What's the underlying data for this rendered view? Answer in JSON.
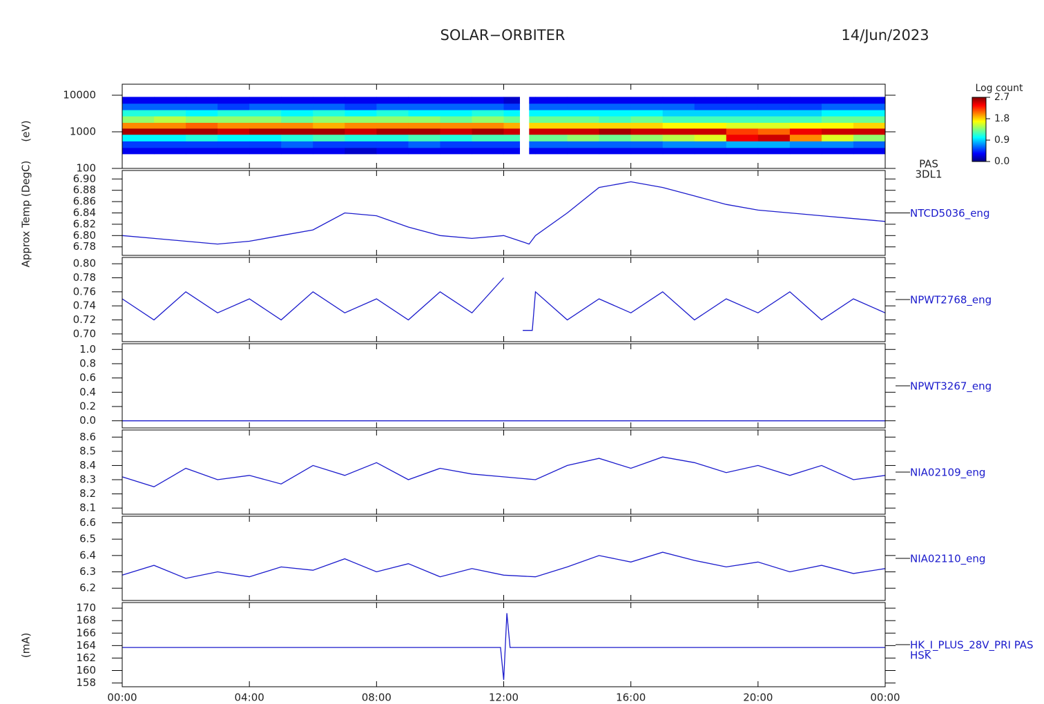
{
  "title": "SOLAR−ORBITER",
  "date": "14/Jun/2023",
  "y_labels": [
    "(eV)",
    "Approx Temp (DegC)",
    "(mA)"
  ],
  "time_axis": {
    "xlim": [
      0,
      24
    ],
    "xticks": [
      {
        "value": 0,
        "label": "00:00"
      },
      {
        "value": 4,
        "label": "04:00"
      },
      {
        "value": 8,
        "label": "08:00"
      },
      {
        "value": 12,
        "label": "12:00"
      },
      {
        "value": 16,
        "label": "16:00"
      },
      {
        "value": 20,
        "label": "20:00"
      },
      {
        "value": 24,
        "label": "00:00"
      }
    ]
  },
  "chart_data": [
    {
      "type": "spectrogram",
      "labels": [
        "PAS",
        "3DL1"
      ],
      "log_y": true,
      "ylim": [
        100,
        20000
      ],
      "yticks": [
        100,
        1000,
        10000
      ],
      "time_bins": [
        0,
        1,
        2,
        3,
        4,
        5,
        6,
        7,
        8,
        9,
        10,
        11,
        12,
        12.5,
        12.8,
        13,
        14,
        15,
        16,
        17,
        18,
        19,
        20,
        21,
        22,
        23,
        24
      ],
      "energy_bins": [
        250,
        370,
        560,
        850,
        1250,
        1800,
        2700,
        4000,
        6000,
        9000
      ],
      "values": [
        [
          0.3,
          0.5,
          1.0,
          2.6,
          2.0,
          1.4,
          1.1,
          0.6,
          0.3
        ],
        [
          0.3,
          0.5,
          1.0,
          2.6,
          2.0,
          1.5,
          1.1,
          0.6,
          0.3
        ],
        [
          0.3,
          0.5,
          1.1,
          2.6,
          2.1,
          1.4,
          1.0,
          0.6,
          0.3
        ],
        [
          0.3,
          0.5,
          1.0,
          2.5,
          2.0,
          1.4,
          1.1,
          0.5,
          0.3
        ],
        [
          0.3,
          0.5,
          1.0,
          2.6,
          2.0,
          1.4,
          1.1,
          0.6,
          0.3
        ],
        [
          0.3,
          0.6,
          1.1,
          2.6,
          2.0,
          1.3,
          1.0,
          0.6,
          0.3
        ],
        [
          0.3,
          0.5,
          1.2,
          2.6,
          1.9,
          1.4,
          1.1,
          0.6,
          0.3
        ],
        [
          0.2,
          0.5,
          1.1,
          2.5,
          2.0,
          1.4,
          1.0,
          0.5,
          0.3
        ],
        [
          0.3,
          0.5,
          1.1,
          2.6,
          2.0,
          1.4,
          1.1,
          0.6,
          0.3
        ],
        [
          0.3,
          0.6,
          1.2,
          2.6,
          2.0,
          1.4,
          1.0,
          0.6,
          0.3
        ],
        [
          0.3,
          0.5,
          1.1,
          2.5,
          2.0,
          1.3,
          1.0,
          0.6,
          0.3
        ],
        [
          0.3,
          0.5,
          1.2,
          2.6,
          2.0,
          1.4,
          1.1,
          0.6,
          0.3
        ],
        [
          0.3,
          0.5,
          1.2,
          2.5,
          1.9,
          1.3,
          1.0,
          0.5,
          0.2
        ],
        [
          null,
          null,
          null,
          null,
          null,
          null,
          null,
          null,
          null
        ],
        [
          0.3,
          0.6,
          1.3,
          2.5,
          1.8,
          1.3,
          1.0,
          0.6,
          0.3
        ],
        [
          0.3,
          0.6,
          1.3,
          2.5,
          1.8,
          1.3,
          1.0,
          0.6,
          0.3
        ],
        [
          0.3,
          0.6,
          1.4,
          2.5,
          1.8,
          1.3,
          1.0,
          0.6,
          0.3
        ],
        [
          0.3,
          0.6,
          1.3,
          2.6,
          1.8,
          1.2,
          1.0,
          0.6,
          0.3
        ],
        [
          0.3,
          0.6,
          1.4,
          2.5,
          1.8,
          1.3,
          1.0,
          0.6,
          0.3
        ],
        [
          0.3,
          0.7,
          1.5,
          2.5,
          1.7,
          1.2,
          0.9,
          0.6,
          0.3
        ],
        [
          0.3,
          0.7,
          1.6,
          2.5,
          1.7,
          1.2,
          0.9,
          0.5,
          0.3
        ],
        [
          0.3,
          0.8,
          2.4,
          2.2,
          1.6,
          1.2,
          0.9,
          0.5,
          0.3
        ],
        [
          0.3,
          0.8,
          2.5,
          2.1,
          1.6,
          1.2,
          0.9,
          0.5,
          0.3
        ],
        [
          0.3,
          0.7,
          2.0,
          2.4,
          1.7,
          1.2,
          0.9,
          0.5,
          0.3
        ],
        [
          0.3,
          0.7,
          1.6,
          2.5,
          1.7,
          1.3,
          1.0,
          0.6,
          0.3
        ],
        [
          0.3,
          0.6,
          1.4,
          2.5,
          1.8,
          1.3,
          1.0,
          0.6,
          0.3
        ]
      ],
      "colorbar": {
        "title": "Log count",
        "zlim": [
          0,
          2.7
        ],
        "ticks": [
          {
            "value": 0,
            "label": "0.0"
          },
          0.9,
          1.8,
          2.7
        ]
      }
    },
    {
      "type": "line",
      "labels": [
        "NTCD5036_eng"
      ],
      "color": "#1a1acc",
      "ylim": [
        6.765,
        6.915
      ],
      "yticks": [
        6.78,
        {
          "value": 6.8,
          "label": "6.80"
        },
        6.82,
        6.84,
        6.86,
        6.88,
        {
          "value": 6.9,
          "label": "6.90"
        }
      ],
      "x": [
        0,
        1,
        2,
        3,
        4,
        5,
        6,
        7,
        8,
        9,
        10,
        11,
        12,
        12.8,
        13,
        14,
        15,
        16,
        17,
        18,
        19,
        20,
        21,
        22,
        23,
        24
      ],
      "values": [
        6.8,
        6.795,
        6.79,
        6.785,
        6.79,
        6.8,
        6.81,
        6.84,
        6.835,
        6.815,
        6.8,
        6.795,
        6.8,
        6.785,
        6.8,
        6.84,
        6.885,
        6.895,
        6.885,
        6.87,
        6.855,
        6.845,
        6.84,
        6.835,
        6.83,
        6.825
      ]
    },
    {
      "type": "line",
      "labels": [
        "NPWT2768_eng"
      ],
      "color": "#1a1acc",
      "ylim": [
        0.689,
        0.809
      ],
      "yticks": [
        {
          "value": 0.7,
          "label": "0.70"
        },
        0.72,
        0.74,
        0.76,
        0.78,
        {
          "value": 0.8,
          "label": "0.80"
        }
      ],
      "x": [
        0,
        1,
        2,
        3,
        4,
        5,
        6,
        7,
        8,
        9,
        10,
        11,
        12,
        12.5,
        12.6,
        12.9,
        13,
        14,
        15,
        16,
        17,
        18,
        19,
        20,
        21,
        22,
        23,
        24
      ],
      "values": [
        0.75,
        0.72,
        0.76,
        0.73,
        0.75,
        0.72,
        0.76,
        0.73,
        0.75,
        0.72,
        0.76,
        0.73,
        0.78,
        null,
        0.705,
        0.705,
        0.76,
        0.72,
        0.75,
        0.73,
        0.76,
        0.72,
        0.75,
        0.73,
        0.76,
        0.72,
        0.75,
        0.73
      ]
    },
    {
      "type": "line",
      "labels": [
        "NPWT3267_eng"
      ],
      "color": "#1a1acc",
      "ylim": [
        -0.1,
        1.08
      ],
      "yticks": [
        {
          "value": 0,
          "label": "0.0"
        },
        0.2,
        0.4,
        0.6,
        0.8,
        {
          "value": 1,
          "label": "1.0"
        }
      ],
      "x": [
        0,
        12,
        24
      ],
      "values": [
        0,
        0,
        0
      ]
    },
    {
      "type": "line",
      "labels": [
        "NIA02109_eng"
      ],
      "color": "#1a1acc",
      "ylim": [
        8.057,
        8.65
      ],
      "yticks": [
        8.1,
        8.2,
        8.3,
        8.4,
        8.5,
        8.6
      ],
      "x": [
        0,
        1,
        2,
        3,
        4,
        5,
        6,
        7,
        8,
        9,
        10,
        11,
        12,
        13,
        14,
        15,
        16,
        17,
        18,
        19,
        20,
        21,
        22,
        23,
        24
      ],
      "values": [
        8.32,
        8.25,
        8.38,
        8.3,
        8.33,
        8.27,
        8.4,
        8.33,
        8.42,
        8.3,
        8.38,
        8.34,
        8.32,
        8.3,
        8.4,
        8.45,
        8.38,
        8.46,
        8.42,
        8.35,
        8.4,
        8.33,
        8.4,
        8.3,
        8.33
      ]
    },
    {
      "type": "line",
      "labels": [
        "NIA02110_eng"
      ],
      "color": "#1a1acc",
      "ylim": [
        6.125,
        6.64
      ],
      "yticks": [
        6.2,
        6.3,
        6.4,
        6.5,
        6.6
      ],
      "x": [
        0,
        1,
        2,
        3,
        4,
        5,
        6,
        7,
        8,
        9,
        10,
        11,
        12,
        13,
        14,
        15,
        16,
        17,
        18,
        19,
        20,
        21,
        22,
        23,
        24
      ],
      "values": [
        6.28,
        6.34,
        6.26,
        6.3,
        6.27,
        6.33,
        6.31,
        6.38,
        6.3,
        6.35,
        6.27,
        6.32,
        6.28,
        6.27,
        6.33,
        6.4,
        6.36,
        6.42,
        6.37,
        6.33,
        6.36,
        6.3,
        6.34,
        6.29,
        6.32
      ]
    },
    {
      "type": "line",
      "labels": [
        "HK_I_PLUS_28V_PRI PAS",
        "HSK"
      ],
      "color": "#1a1acc",
      "ylim": [
        157.4,
        170.9
      ],
      "yticks": [
        158,
        160,
        162,
        164,
        166,
        168,
        170
      ],
      "x": [
        0,
        4,
        8,
        11.9,
        12,
        12.1,
        12.2,
        16,
        20,
        24
      ],
      "values": [
        163.7,
        163.7,
        163.7,
        163.7,
        158.5,
        169.2,
        163.7,
        163.7,
        163.7,
        163.7
      ]
    }
  ]
}
